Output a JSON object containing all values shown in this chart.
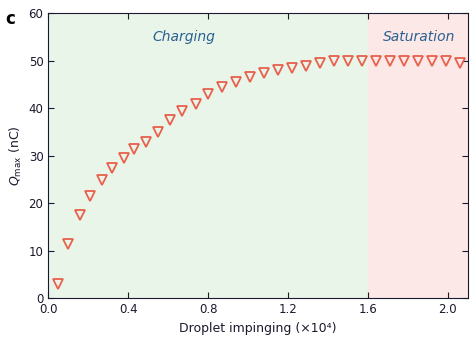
{
  "title_label": "c",
  "xlabel": "Droplet impinging (×10⁴)",
  "ylabel": "$Q_{\\mathrm{max}}$ (nC)",
  "xlim": [
    0.0,
    2.1
  ],
  "ylim": [
    0,
    60
  ],
  "xticks": [
    0.0,
    0.4,
    0.8,
    1.2,
    1.6,
    2.0
  ],
  "xtick_labels": [
    "0.0",
    "0.4",
    "0.8",
    "1.2",
    "1.6",
    "2.0"
  ],
  "yticks": [
    0,
    10,
    20,
    30,
    40,
    50,
    60
  ],
  "ytick_labels": [
    "0",
    "10",
    "20",
    "30",
    "40",
    "50",
    "60"
  ],
  "charging_bg": "#eaf5ea",
  "saturation_bg": "#fde8e8",
  "charging_label": "Charging",
  "saturation_label": "Saturation",
  "label_color": "#2a6090",
  "split_x": 1.6,
  "marker_color": "#e8604c",
  "x_data": [
    0.05,
    0.1,
    0.16,
    0.21,
    0.27,
    0.32,
    0.38,
    0.43,
    0.49,
    0.55,
    0.61,
    0.67,
    0.74,
    0.8,
    0.87,
    0.94,
    1.01,
    1.08,
    1.15,
    1.22,
    1.29,
    1.36,
    1.43,
    1.5,
    1.57,
    1.64,
    1.71,
    1.78,
    1.85,
    1.92,
    1.99,
    2.06
  ],
  "y_data": [
    3.0,
    11.5,
    17.5,
    21.5,
    25.0,
    27.5,
    29.5,
    31.5,
    33.0,
    35.0,
    37.5,
    39.5,
    41.0,
    43.0,
    44.5,
    45.5,
    46.5,
    47.5,
    48.0,
    48.5,
    49.0,
    49.5,
    50.0,
    50.0,
    50.0,
    50.0,
    50.0,
    50.0,
    50.0,
    50.0,
    50.0,
    49.5
  ],
  "marker_size": 7,
  "marker_linewidth": 1.3,
  "panel_label_fontsize": 12,
  "axis_label_fontsize": 9,
  "tick_fontsize": 8.5,
  "region_label_fontsize": 10
}
